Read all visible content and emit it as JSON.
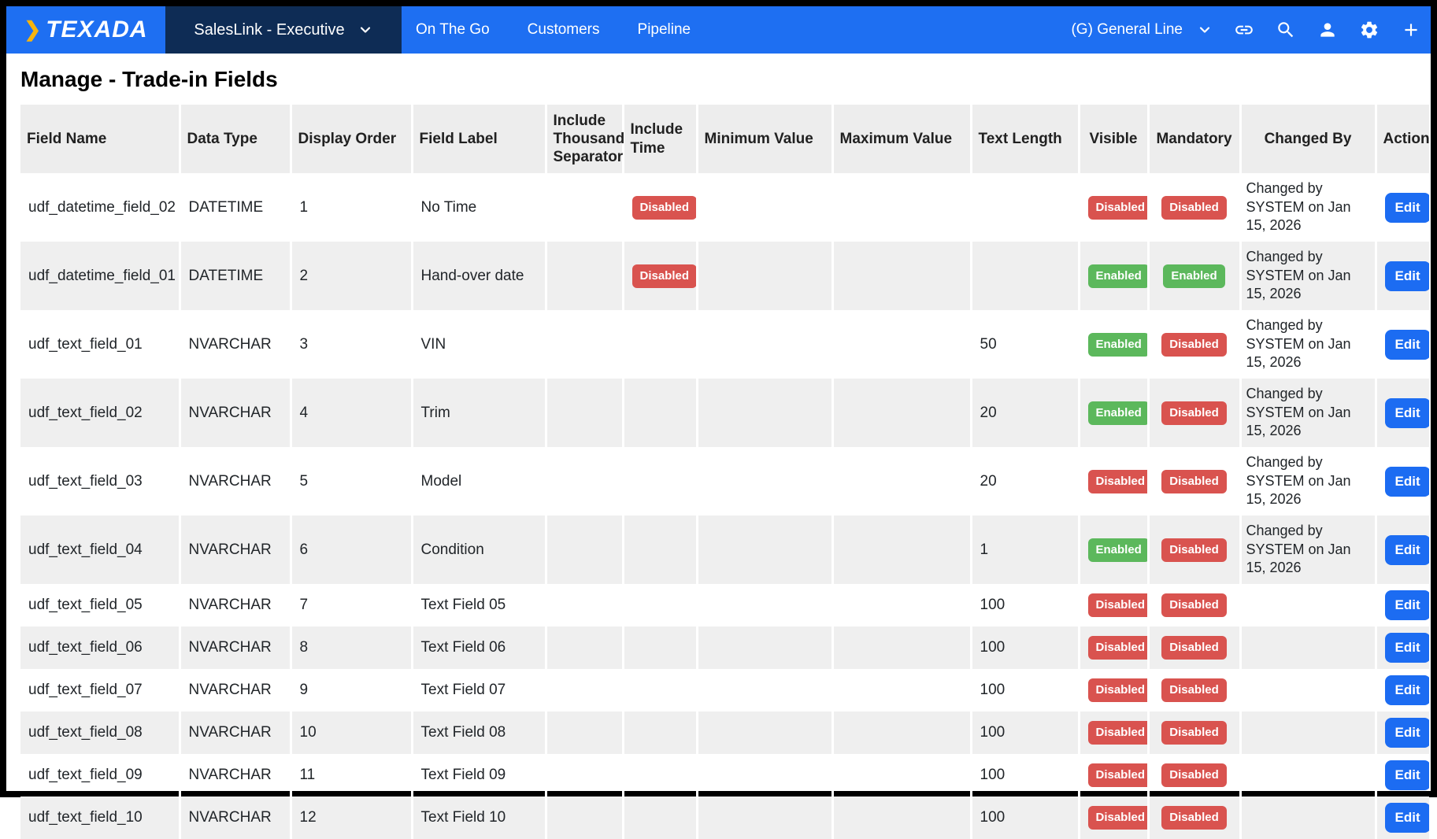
{
  "nav": {
    "brand": "TEXADA",
    "brand_chevron": "❯",
    "app_menu": "SalesLink - Executive",
    "links": [
      "On The Go",
      "Customers",
      "Pipeline"
    ],
    "account": "(G) General Line",
    "icons": [
      "link-icon",
      "search-icon",
      "user-icon",
      "gear-icon",
      "plus-icon"
    ]
  },
  "page": {
    "title": "Manage - Trade-in Fields"
  },
  "colors": {
    "navbar_blue": "#1e6ff2",
    "app_menu_navy": "#0e2c55",
    "brand_yellow": "#f6b40e",
    "badge_green": "#5cb85c",
    "badge_red": "#d9534f",
    "edit_blue": "#1c6cf2",
    "header_gray": "#ededed",
    "stripe_gray": "#efefef"
  },
  "table": {
    "columns": [
      "Field Name",
      "Data Type",
      "Display Order",
      "Field Label",
      "Include Thousand Separator",
      "Include Time",
      "Minimum Value",
      "Maximum Value",
      "Text Length",
      "Visible",
      "Mandatory",
      "Changed By",
      "Action"
    ],
    "rows": [
      {
        "field_name": "udf_datetime_field_02",
        "data_type": "DATETIME",
        "display_order": "1",
        "field_label": "No Time",
        "include_thousand_separator": "",
        "include_time": "Disabled",
        "minimum_value": "",
        "maximum_value": "",
        "text_length": "",
        "visible": "Disabled",
        "mandatory": "Disabled",
        "changed_by": "Changed by SYSTEM on Jan 15, 2026",
        "action": "Edit"
      },
      {
        "field_name": "udf_datetime_field_01",
        "data_type": "DATETIME",
        "display_order": "2",
        "field_label": "Hand-over date",
        "include_thousand_separator": "",
        "include_time": "Disabled",
        "minimum_value": "",
        "maximum_value": "",
        "text_length": "",
        "visible": "Enabled",
        "mandatory": "Enabled",
        "changed_by": "Changed by SYSTEM on Jan 15, 2026",
        "action": "Edit"
      },
      {
        "field_name": "udf_text_field_01",
        "data_type": "NVARCHAR",
        "display_order": "3",
        "field_label": "VIN",
        "include_thousand_separator": "",
        "include_time": "",
        "minimum_value": "",
        "maximum_value": "",
        "text_length": "50",
        "visible": "Enabled",
        "mandatory": "Disabled",
        "changed_by": "Changed by SYSTEM on Jan 15, 2026",
        "action": "Edit"
      },
      {
        "field_name": "udf_text_field_02",
        "data_type": "NVARCHAR",
        "display_order": "4",
        "field_label": "Trim",
        "include_thousand_separator": "",
        "include_time": "",
        "minimum_value": "",
        "maximum_value": "",
        "text_length": "20",
        "visible": "Enabled",
        "mandatory": "Disabled",
        "changed_by": "Changed by SYSTEM on Jan 15, 2026",
        "action": "Edit"
      },
      {
        "field_name": "udf_text_field_03",
        "data_type": "NVARCHAR",
        "display_order": "5",
        "field_label": "Model",
        "include_thousand_separator": "",
        "include_time": "",
        "minimum_value": "",
        "maximum_value": "",
        "text_length": "20",
        "visible": "Disabled",
        "mandatory": "Disabled",
        "changed_by": "Changed by SYSTEM on Jan 15, 2026",
        "action": "Edit"
      },
      {
        "field_name": "udf_text_field_04",
        "data_type": "NVARCHAR",
        "display_order": "6",
        "field_label": "Condition",
        "include_thousand_separator": "",
        "include_time": "",
        "minimum_value": "",
        "maximum_value": "",
        "text_length": "1",
        "visible": "Enabled",
        "mandatory": "Disabled",
        "changed_by": "Changed by SYSTEM on Jan 15, 2026",
        "action": "Edit"
      },
      {
        "field_name": "udf_text_field_05",
        "data_type": "NVARCHAR",
        "display_order": "7",
        "field_label": "Text Field 05",
        "include_thousand_separator": "",
        "include_time": "",
        "minimum_value": "",
        "maximum_value": "",
        "text_length": "100",
        "visible": "Disabled",
        "mandatory": "Disabled",
        "changed_by": "",
        "action": "Edit"
      },
      {
        "field_name": "udf_text_field_06",
        "data_type": "NVARCHAR",
        "display_order": "8",
        "field_label": "Text Field 06",
        "include_thousand_separator": "",
        "include_time": "",
        "minimum_value": "",
        "maximum_value": "",
        "text_length": "100",
        "visible": "Disabled",
        "mandatory": "Disabled",
        "changed_by": "",
        "action": "Edit"
      },
      {
        "field_name": "udf_text_field_07",
        "data_type": "NVARCHAR",
        "display_order": "9",
        "field_label": "Text Field 07",
        "include_thousand_separator": "",
        "include_time": "",
        "minimum_value": "",
        "maximum_value": "",
        "text_length": "100",
        "visible": "Disabled",
        "mandatory": "Disabled",
        "changed_by": "",
        "action": "Edit"
      },
      {
        "field_name": "udf_text_field_08",
        "data_type": "NVARCHAR",
        "display_order": "10",
        "field_label": "Text Field 08",
        "include_thousand_separator": "",
        "include_time": "",
        "minimum_value": "",
        "maximum_value": "",
        "text_length": "100",
        "visible": "Disabled",
        "mandatory": "Disabled",
        "changed_by": "",
        "action": "Edit"
      },
      {
        "field_name": "udf_text_field_09",
        "data_type": "NVARCHAR",
        "display_order": "11",
        "field_label": "Text Field 09",
        "include_thousand_separator": "",
        "include_time": "",
        "minimum_value": "",
        "maximum_value": "",
        "text_length": "100",
        "visible": "Disabled",
        "mandatory": "Disabled",
        "changed_by": "",
        "action": "Edit"
      },
      {
        "field_name": "udf_text_field_10",
        "data_type": "NVARCHAR",
        "display_order": "12",
        "field_label": "Text Field 10",
        "include_thousand_separator": "",
        "include_time": "",
        "minimum_value": "",
        "maximum_value": "",
        "text_length": "100",
        "visible": "Disabled",
        "mandatory": "Disabled",
        "changed_by": "",
        "action": "Edit"
      }
    ]
  }
}
